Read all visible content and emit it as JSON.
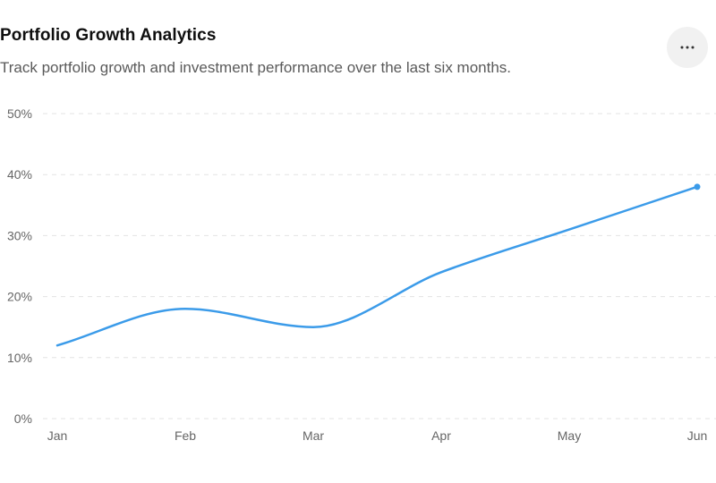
{
  "header": {
    "title": "Portfolio Growth Analytics",
    "subtitle": "Track portfolio growth and investment performance over the last six months.",
    "more_icon": "more-horizontal-icon"
  },
  "chart_data": {
    "type": "line",
    "categories": [
      "Jan",
      "Feb",
      "Mar",
      "Apr",
      "May",
      "Jun"
    ],
    "series": [
      {
        "values": [
          12,
          18,
          15,
          24,
          31,
          38
        ]
      }
    ],
    "ylim": [
      0,
      50
    ],
    "yticks": [
      0,
      10,
      20,
      30,
      40,
      50
    ],
    "ytick_labels": [
      "0%",
      "10%",
      "20%",
      "30%",
      "40%",
      "50%"
    ],
    "grid": true,
    "line_color": "#3b9be9",
    "grid_color": "#e3e3e3"
  }
}
